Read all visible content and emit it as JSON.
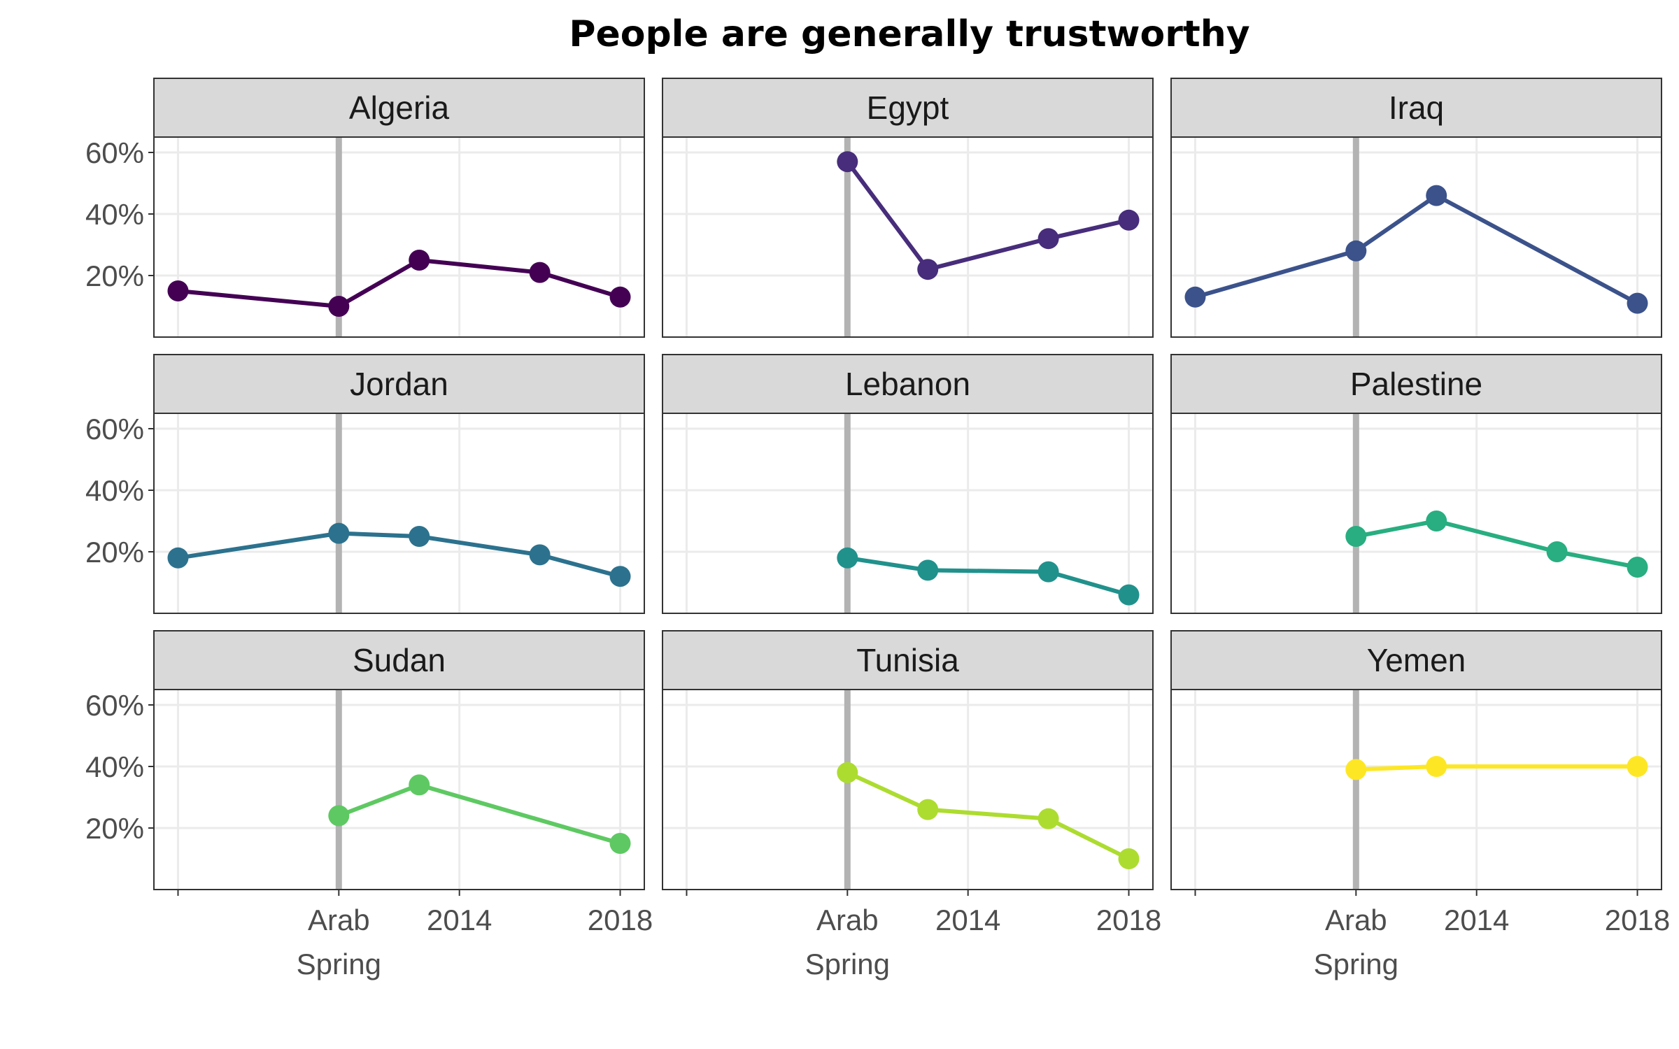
{
  "chart_data": {
    "type": "line",
    "title": "People are generally trustworthy",
    "xlabel": "",
    "ylabel": "",
    "facet_layout": "3x3 grid",
    "x_ticks": [
      {
        "x": 2007,
        "label": ""
      },
      {
        "x": 2011,
        "label": "Arab\nSpring"
      },
      {
        "x": 2014,
        "label": "2014"
      },
      {
        "x": 2018,
        "label": "2018"
      }
    ],
    "xlim": [
      2006.4,
      2018.6
    ],
    "y_ticks": [
      {
        "y": 0.2,
        "label": "20%"
      },
      {
        "y": 0.4,
        "label": "40%"
      },
      {
        "y": 0.6,
        "label": "60%"
      }
    ],
    "ylim": [
      0,
      0.65
    ],
    "reference_line": {
      "x": 2011,
      "color": "#b3b3b3"
    },
    "grid": true,
    "legend": "none",
    "colors": {
      "strip_fill": "#d9d9d9",
      "panel_border": "#333333",
      "grid": "#ebebeb",
      "tick": "#333333"
    },
    "panels": [
      {
        "name": "Algeria",
        "color": "#440154",
        "points": [
          {
            "x": 2007,
            "y": 0.15
          },
          {
            "x": 2011,
            "y": 0.1
          },
          {
            "x": 2013,
            "y": 0.25
          },
          {
            "x": 2016,
            "y": 0.21
          },
          {
            "x": 2018,
            "y": 0.13
          }
        ]
      },
      {
        "name": "Egypt",
        "color": "#472d7b",
        "points": [
          {
            "x": 2011,
            "y": 0.57
          },
          {
            "x": 2013,
            "y": 0.22
          },
          {
            "x": 2016,
            "y": 0.32
          },
          {
            "x": 2018,
            "y": 0.38
          }
        ]
      },
      {
        "name": "Iraq",
        "color": "#3b528b",
        "points": [
          {
            "x": 2007,
            "y": 0.13
          },
          {
            "x": 2011,
            "y": 0.28
          },
          {
            "x": 2013,
            "y": 0.46
          },
          {
            "x": 2018,
            "y": 0.11
          }
        ]
      },
      {
        "name": "Jordan",
        "color": "#2c728e",
        "points": [
          {
            "x": 2007,
            "y": 0.18
          },
          {
            "x": 2011,
            "y": 0.26
          },
          {
            "x": 2013,
            "y": 0.25
          },
          {
            "x": 2016,
            "y": 0.19
          },
          {
            "x": 2018,
            "y": 0.12
          }
        ]
      },
      {
        "name": "Lebanon",
        "color": "#21918c",
        "points": [
          {
            "x": 2011,
            "y": 0.18
          },
          {
            "x": 2013,
            "y": 0.14
          },
          {
            "x": 2016,
            "y": 0.135
          },
          {
            "x": 2018,
            "y": 0.06
          }
        ]
      },
      {
        "name": "Palestine",
        "color": "#28ae80",
        "points": [
          {
            "x": 2011,
            "y": 0.25
          },
          {
            "x": 2013,
            "y": 0.3
          },
          {
            "x": 2016,
            "y": 0.2
          },
          {
            "x": 2018,
            "y": 0.15
          }
        ]
      },
      {
        "name": "Sudan",
        "color": "#5ec962",
        "points": [
          {
            "x": 2011,
            "y": 0.24
          },
          {
            "x": 2013,
            "y": 0.34
          },
          {
            "x": 2018,
            "y": 0.15
          }
        ]
      },
      {
        "name": "Tunisia",
        "color": "#addc30",
        "points": [
          {
            "x": 2011,
            "y": 0.38
          },
          {
            "x": 2013,
            "y": 0.26
          },
          {
            "x": 2016,
            "y": 0.23
          },
          {
            "x": 2018,
            "y": 0.1
          }
        ]
      },
      {
        "name": "Yemen",
        "color": "#fde725",
        "points": [
          {
            "x": 2011,
            "y": 0.39
          },
          {
            "x": 2013,
            "y": 0.4
          },
          {
            "x": 2018,
            "y": 0.4
          }
        ]
      }
    ]
  }
}
